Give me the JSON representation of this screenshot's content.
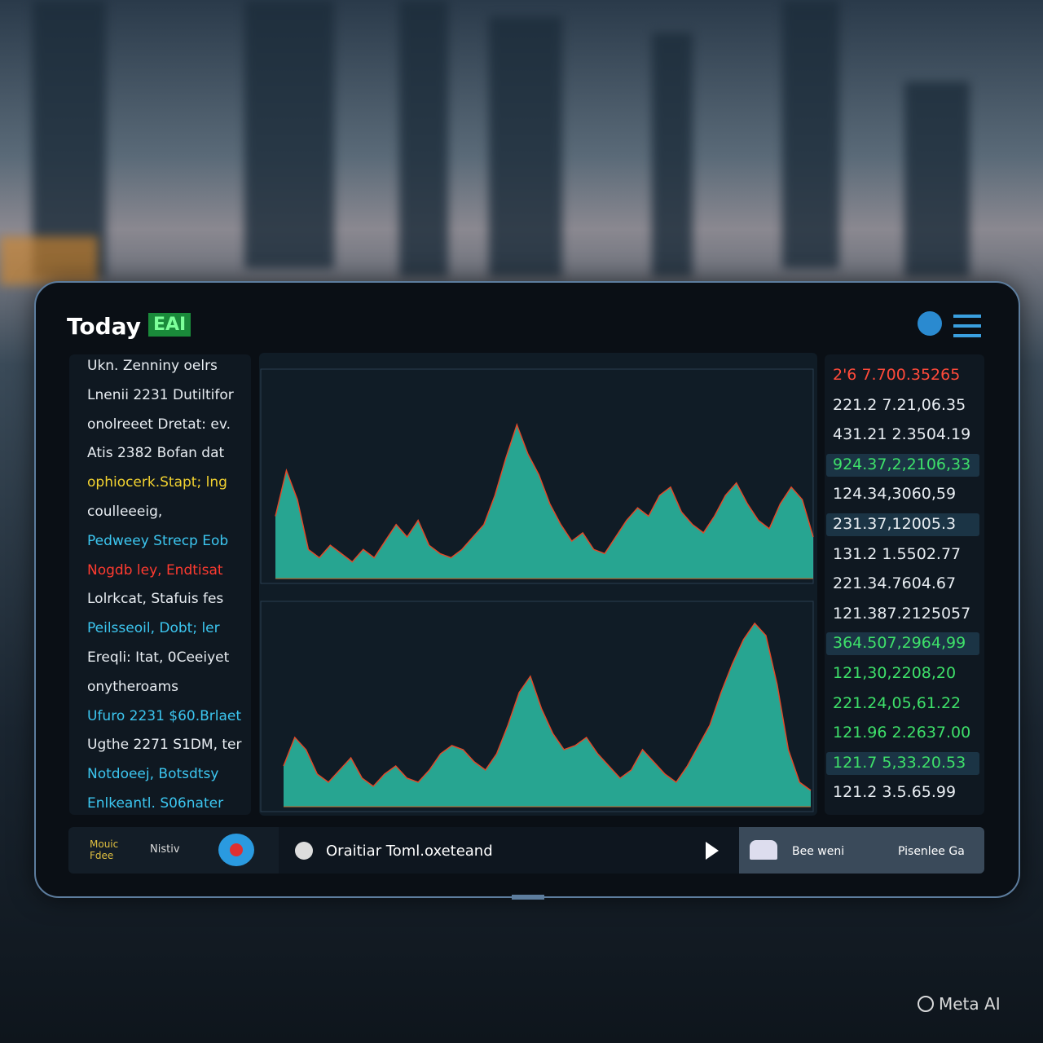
{
  "header": {
    "title": "Today",
    "badge": "EAI"
  },
  "left_list": [
    {
      "text": "Ukn. Zenniny oelrs",
      "color": "#e8edf2"
    },
    {
      "text": "Lnenii 2231 Dutiltifor",
      "color": "#e8edf2"
    },
    {
      "text": "onolreeet Dretat: ev.",
      "color": "#e8edf2"
    },
    {
      "text": "Atis 2382 Bofan dat",
      "color": "#e8edf2"
    },
    {
      "text": "ophiocerk.Stapt; lng",
      "color": "#f2d230"
    },
    {
      "text": "coulleeeig,",
      "color": "#e8edf2"
    },
    {
      "text": "Pedweey Strecp Eob",
      "color": "#3cc6f0"
    },
    {
      "text": "Nogdb ley, Endtisat",
      "color": "#ff3b30"
    },
    {
      "text": "Lolrkcat, Stafuis fes",
      "color": "#e8edf2"
    },
    {
      "text": "Peilsseoil, Dobt; ler",
      "color": "#3cc6f0"
    },
    {
      "text": "Ereqli: Itat, 0Ceeiyet",
      "color": "#e8edf2"
    },
    {
      "text": "onytheroams",
      "color": "#e8edf2"
    },
    {
      "text": "Ufuro 2231 $60.Brlaet",
      "color": "#3cc6f0"
    },
    {
      "text": "Ugthe 2271 S1DM, ter",
      "color": "#e8edf2"
    },
    {
      "text": "Notdoeej, Botsdtsy",
      "color": "#3cc6f0"
    },
    {
      "text": "Enlkeantl. S06nater",
      "color": "#3cc6f0"
    }
  ],
  "chart_data": [
    {
      "type": "area",
      "color": "#2fd3b5",
      "ylim": [
        0,
        100
      ],
      "values": [
        30,
        52,
        38,
        14,
        10,
        16,
        12,
        8,
        14,
        10,
        18,
        26,
        20,
        28,
        16,
        12,
        10,
        14,
        20,
        26,
        40,
        58,
        74,
        60,
        50,
        36,
        26,
        18,
        22,
        14,
        12,
        20,
        28,
        34,
        30,
        40,
        44,
        32,
        26,
        22,
        30,
        40,
        46,
        36,
        28,
        24,
        36,
        44,
        38,
        20
      ]
    },
    {
      "type": "area",
      "color": "#2fd3b5",
      "ylim": [
        0,
        100
      ],
      "values": [
        20,
        34,
        28,
        16,
        12,
        18,
        24,
        14,
        10,
        16,
        20,
        14,
        12,
        18,
        26,
        30,
        28,
        22,
        18,
        26,
        40,
        56,
        64,
        48,
        36,
        28,
        30,
        34,
        26,
        20,
        14,
        18,
        28,
        22,
        16,
        12,
        20,
        30,
        40,
        56,
        70,
        82,
        90,
        84,
        60,
        28,
        12,
        8
      ]
    }
  ],
  "right_list": [
    {
      "text": "2'6 7.700.35265",
      "color": "#ff4a3a",
      "highlight": false
    },
    {
      "text": "221.2 7.21,06.35",
      "color": "#e8edf2",
      "highlight": false
    },
    {
      "text": "431.21 2.3504.19",
      "color": "#e8edf2",
      "highlight": false
    },
    {
      "text": "924.37,2,2106,33",
      "color": "#3ee06a",
      "highlight": true
    },
    {
      "text": "124.34,3060,59",
      "color": "#e8edf2",
      "highlight": false
    },
    {
      "text": "231.37,12005.3",
      "color": "#e8edf2",
      "highlight": true
    },
    {
      "text": "131.2 1.5502.77",
      "color": "#e8edf2",
      "highlight": false
    },
    {
      "text": "221.34.7604.67",
      "color": "#e8edf2",
      "highlight": false
    },
    {
      "text": "121.387.2125057",
      "color": "#e8edf2",
      "highlight": false
    },
    {
      "text": "364.507,2964,99",
      "color": "#3ee06a",
      "highlight": true
    },
    {
      "text": "121,30,2208,20",
      "color": "#3ee06a",
      "highlight": false
    },
    {
      "text": "221.24,05,61.22",
      "color": "#3ee06a",
      "highlight": false
    },
    {
      "text": "121.96 2.2637.00",
      "color": "#3ee06a",
      "highlight": false
    },
    {
      "text": "121.7 5,33.20.53",
      "color": "#3ee06a",
      "highlight": true
    },
    {
      "text": "121.2 3.5.65.99",
      "color": "#e8edf2",
      "highlight": false
    }
  ],
  "footer": {
    "logo_1": "Mouic Fdee",
    "logo_2": "Nistiv",
    "track": "Oraitiar Toml.oxeteand",
    "label_1": "Bee weni",
    "label_2": "Pisenlee Ga"
  },
  "watermark": "Meta AI"
}
